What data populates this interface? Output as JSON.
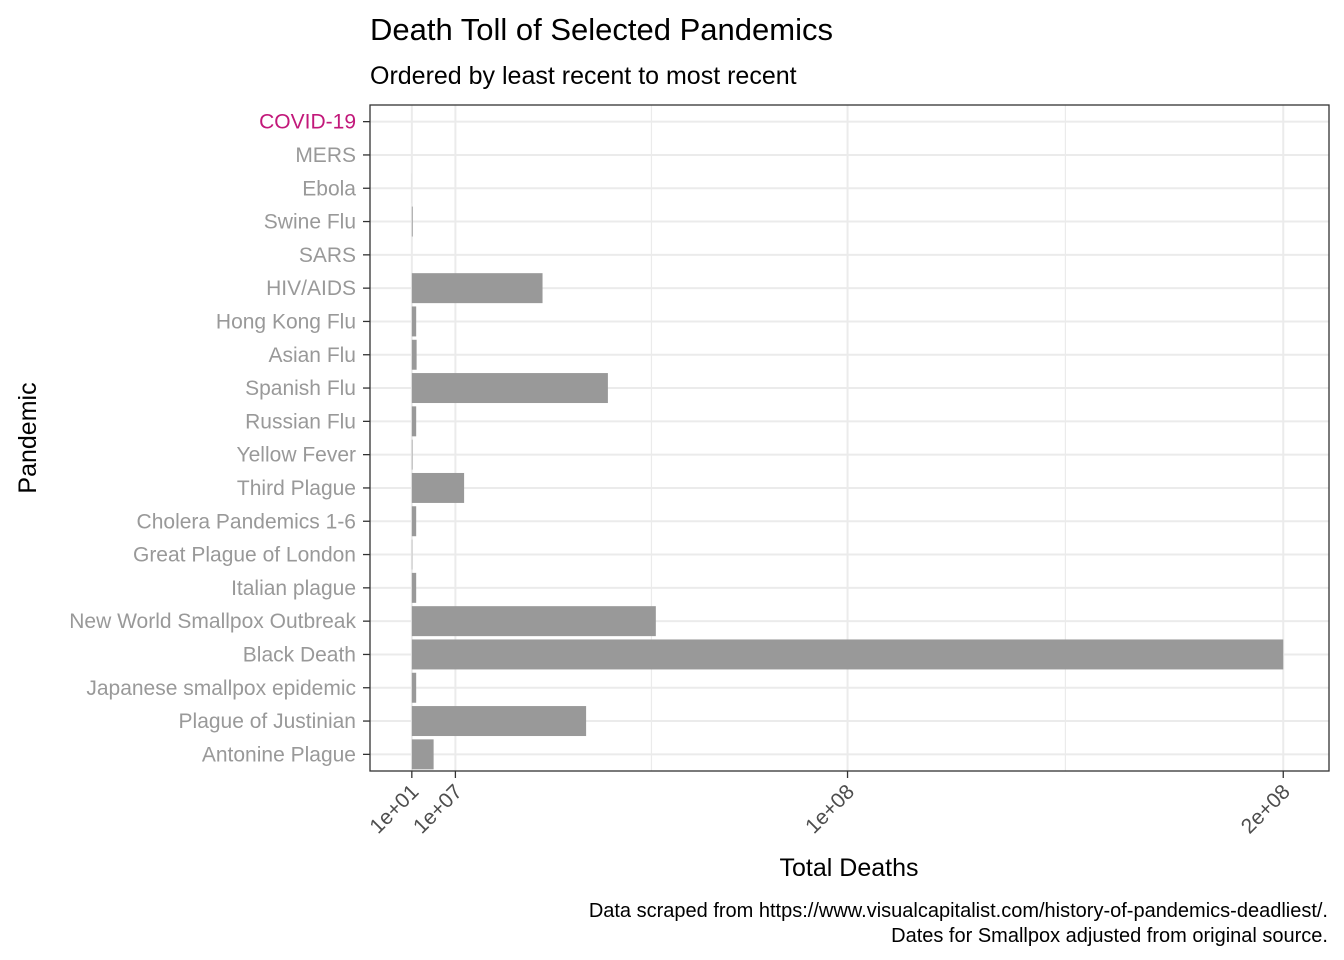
{
  "chart_data": {
    "type": "bar",
    "orientation": "horizontal",
    "title": "Death Toll of Selected Pandemics",
    "subtitle": "Ordered by least recent to most recent",
    "xlabel": "Total Deaths",
    "ylabel": "Pandemic",
    "xlim": [
      -9600000,
      210500000
    ],
    "x_ticks": [
      {
        "value": 10,
        "label": "1e+01"
      },
      {
        "value": 10000000,
        "label": "1e+07"
      },
      {
        "value": 100000000,
        "label": "1e+08"
      },
      {
        "value": 200000000,
        "label": "2e+08"
      }
    ],
    "minor_gridlines": [
      55000000,
      150000000
    ],
    "grid": true,
    "categories": [
      "Antonine Plague",
      "Plague of Justinian",
      "Japanese smallpox epidemic",
      "Black Death",
      "New World Smallpox Outbreak",
      "Italian plague",
      "Great Plague of London",
      "Cholera Pandemics 1-6",
      "Third Plague",
      "Yellow Fever",
      "Russian Flu",
      "Spanish Flu",
      "Asian Flu",
      "Hong Kong Flu",
      "HIV/AIDS",
      "SARS",
      "Swine Flu",
      "Ebola",
      "MERS",
      "COVID-19"
    ],
    "values": [
      5000000,
      40000000,
      1000000,
      200000000,
      56000000,
      1000000,
      100000,
      1000000,
      12000000,
      150000,
      1000000,
      45000000,
      1100000,
      1000000,
      30000000,
      770,
      200000,
      11000,
      850,
      1000
    ],
    "highlight_category": "COVID-19",
    "colors": {
      "bar": "#999999",
      "label": "#999999",
      "highlight_label": "#C2187A",
      "grid": "#EBEBEB",
      "axis": "#333333"
    },
    "caption": [
      "Data scraped from https://www.visualcapitalist.com/history-of-pandemics-deadliest/.",
      "Dates for Smallpox adjusted from original source."
    ]
  }
}
